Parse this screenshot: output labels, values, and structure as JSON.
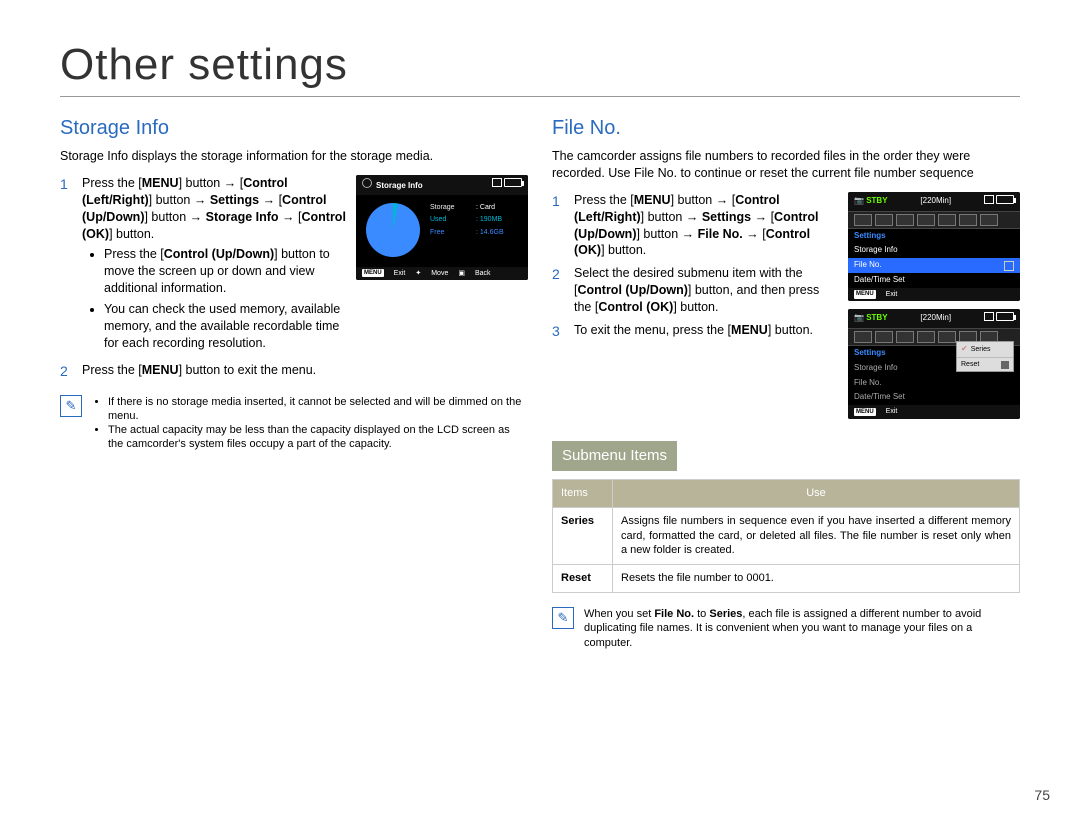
{
  "pageTitle": "Other settings",
  "pageNumber": "75",
  "left": {
    "title": "Storage Info",
    "intro": "Storage Info displays the storage information for the storage media.",
    "step1": "Press the [MENU] button → [Control (Left/Right)] button → Settings → [Control (Up/Down)] button → Storage Info → [Control (OK)] button.",
    "bullet1": "Press the [Control (Up/Down)] button to move the screen up or down and view additional information.",
    "bullet2": "You can check the used memory, available memory, and the available recordable time for each recording resolution.",
    "step2": "Press the [MENU] button to exit the menu.",
    "note1": "If there is no storage media inserted, it cannot be selected and will be dimmed on the menu.",
    "note2": "The actual capacity may be less than the capacity displayed on the LCD screen as the camcorder's system files occupy a part of the capacity.",
    "lcd": {
      "title": "Storage Info",
      "storageLabel": "Storage",
      "storageVal": ": Card",
      "usedLabel": "Used",
      "usedVal": ": 190MB",
      "freeLabel": "Free",
      "freeVal": ": 14.6GB",
      "footExit": "Exit",
      "footMove": "Move",
      "footBack": "Back"
    }
  },
  "right": {
    "title": "File No.",
    "intro": "The camcorder assigns file numbers to recorded files in the order they were recorded. Use File No. to continue or reset the current file number sequence",
    "step1": "Press the [MENU] button → [Control (Left/Right)] button → Settings → [Control (Up/Down)] button → File No. → [Control (OK)] button.",
    "step2": "Select the desired submenu item with the [Control (Up/Down)] button, and then press the [Control (OK)] button.",
    "step3": "To exit the menu, press the [MENU] button.",
    "lcd1": {
      "stby": "STBY",
      "mins": "[220Min]",
      "settings": "Settings",
      "m1": "Storage Info",
      "m2": "File No.",
      "m3": "Date/Time Set",
      "footExit": "Exit"
    },
    "lcd2": {
      "stby": "STBY",
      "mins": "[220Min]",
      "settings": "Settings",
      "m1": "Storage Info",
      "m2": "File No.",
      "m3": "Date/Time Set",
      "popSeries": "Series",
      "popReset": "Reset",
      "footExit": "Exit"
    },
    "submenuTitle": "Submenu Items",
    "colItems": "Items",
    "colUse": "Use",
    "rowSeriesK": "Series",
    "rowSeriesV": "Assigns file numbers in sequence even if you have inserted a different memory card, formatted the card, or deleted all files. The file number is reset only when a new folder is created.",
    "rowResetK": "Reset",
    "rowResetV": "Resets the file number to 0001.",
    "note": "When you set File No. to Series, each file is assigned a different number to avoid duplicating file names. It is convenient when you want to manage your files on a computer."
  }
}
